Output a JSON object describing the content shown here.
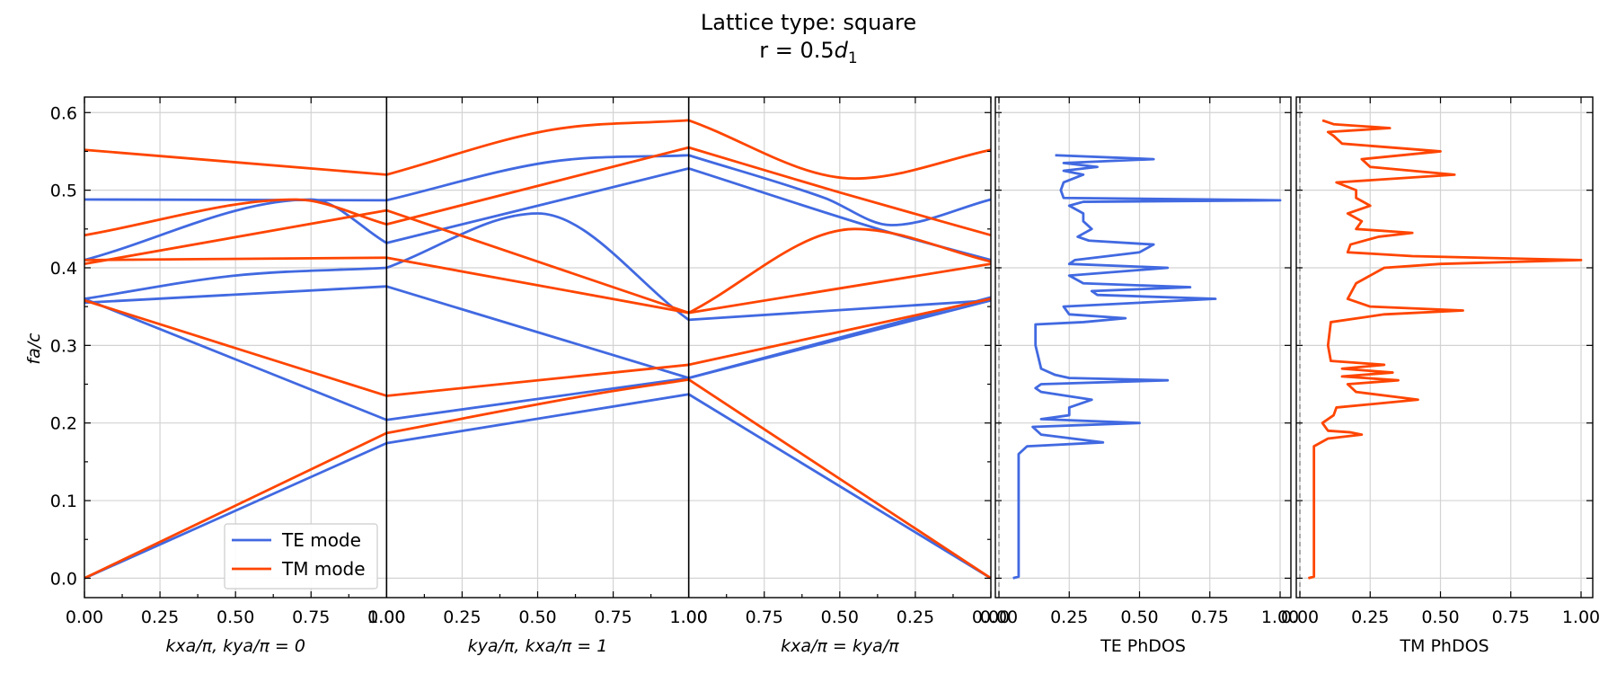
{
  "chart_data": {
    "type": "line",
    "title_line1": "Lattice type: square",
    "title_line2_prefix": "r = 0.5",
    "title_line2_symbol": "d",
    "title_line2_sub": "1",
    "ylabel": "fa/c",
    "ylim": [
      -0.025,
      0.62
    ],
    "yticks": [
      "0.0",
      "0.1",
      "0.2",
      "0.3",
      "0.4",
      "0.5",
      "0.6"
    ],
    "ytick_values": [
      0,
      0.1,
      0.2,
      0.3,
      0.4,
      0.5,
      0.6
    ],
    "grid": true,
    "legend": {
      "position": "lower-left",
      "entries": [
        "TE mode",
        "TM mode"
      ]
    },
    "colors": {
      "TE": "#4169E1",
      "TM": "#FF4500"
    },
    "segments": [
      {
        "xlabel": "kxa/π, kya/π = 0",
        "xticks": [
          "0.00",
          "0.25",
          "0.50",
          "0.75",
          "1.00"
        ]
      },
      {
        "xlabel": "kya/π, kxa/π = 1",
        "xticks": [
          "0.00",
          "0.25",
          "0.50",
          "0.75",
          "1.00"
        ]
      },
      {
        "xlabel": "kxa/π = kya/π",
        "xticks": [
          "1.00",
          "0.75",
          "0.50",
          "0.25",
          "0.00"
        ]
      }
    ],
    "band_x": [
      0,
      1,
      2,
      3
    ],
    "te_bands": [
      {
        "x": [
          0,
          1,
          1.55,
          2,
          2.45,
          2.67,
          3
        ],
        "y": [
          0.488,
          0.487,
          0.537,
          0.545,
          0.49,
          0.455,
          0.488
        ]
      },
      {
        "x": [
          0,
          0.75,
          1,
          2,
          2.67,
          3
        ],
        "y": [
          0.41,
          0.488,
          0.432,
          0.528,
          0.445,
          0.41
        ]
      },
      {
        "x": [
          0,
          0.5,
          1,
          1.5,
          2,
          3
        ],
        "y": [
          0.36,
          0.39,
          0.4,
          0.47,
          0.333,
          0.358
        ]
      },
      {
        "x": [
          0,
          1,
          2,
          3
        ],
        "y": [
          0.355,
          0.376,
          0.258,
          0.358
        ]
      },
      {
        "x": [
          0,
          1,
          2,
          3
        ],
        "y": [
          0.36,
          0.204,
          0.258,
          0.362
        ]
      },
      {
        "x": [
          0,
          1,
          2,
          3
        ],
        "y": [
          0,
          0.174,
          0.237,
          0
        ]
      }
    ],
    "tm_bands": [
      {
        "x": [
          0,
          1,
          1.55,
          2,
          2.55,
          3
        ],
        "y": [
          0.552,
          0.52,
          0.578,
          0.59,
          0.515,
          0.552
        ]
      },
      {
        "x": [
          0,
          0.7,
          1,
          2,
          2.5,
          3
        ],
        "y": [
          0.442,
          0.488,
          0.456,
          0.555,
          0.497,
          0.442
        ]
      },
      {
        "x": [
          0,
          1,
          2,
          2.55,
          3
        ],
        "y": [
          0.405,
          0.474,
          0.342,
          0.45,
          0.408
        ]
      },
      {
        "x": [
          0,
          1,
          2,
          3
        ],
        "y": [
          0.41,
          0.413,
          0.342,
          0.405
        ]
      },
      {
        "x": [
          0,
          1,
          2,
          3
        ],
        "y": [
          0.358,
          0.235,
          0.275,
          0.36
        ]
      },
      {
        "x": [
          0,
          1,
          1.7,
          2,
          3
        ],
        "y": [
          0,
          0.187,
          0.238,
          0.256,
          0
        ]
      }
    ],
    "te_dos": {
      "xlabel": "TE PhDOS",
      "xticks": [
        "0.00",
        "0.25",
        "0.50",
        "0.75",
        "1.00"
      ],
      "y": [
        0.0,
        0.002,
        0.16,
        0.17,
        0.175,
        0.185,
        0.195,
        0.2,
        0.205,
        0.21,
        0.22,
        0.23,
        0.24,
        0.245,
        0.25,
        0.255,
        0.258,
        0.262,
        0.27,
        0.3,
        0.327,
        0.33,
        0.335,
        0.34,
        0.35,
        0.36,
        0.365,
        0.37,
        0.375,
        0.38,
        0.39,
        0.4,
        0.405,
        0.41,
        0.42,
        0.43,
        0.435,
        0.44,
        0.45,
        0.46,
        0.47,
        0.48,
        0.485,
        0.487,
        0.49,
        0.5,
        0.51,
        0.52,
        0.525,
        0.53,
        0.535,
        0.54,
        0.545
      ],
      "v": [
        0.05,
        0.07,
        0.07,
        0.1,
        0.37,
        0.15,
        0.12,
        0.5,
        0.15,
        0.25,
        0.25,
        0.33,
        0.15,
        0.13,
        0.15,
        0.6,
        0.25,
        0.2,
        0.15,
        0.13,
        0.13,
        0.3,
        0.45,
        0.25,
        0.23,
        0.77,
        0.35,
        0.33,
        0.68,
        0.3,
        0.25,
        0.6,
        0.25,
        0.27,
        0.5,
        0.55,
        0.32,
        0.28,
        0.33,
        0.3,
        0.3,
        0.25,
        0.3,
        1.0,
        0.23,
        0.22,
        0.23,
        0.3,
        0.23,
        0.35,
        0.23,
        0.55,
        0.2
      ]
    },
    "tm_dos": {
      "xlabel": "TM PhDOS",
      "xticks": [
        "0.00",
        "0.25",
        "0.50",
        "0.75",
        "1.00"
      ],
      "y": [
        0.0,
        0.002,
        0.17,
        0.18,
        0.185,
        0.188,
        0.19,
        0.2,
        0.21,
        0.22,
        0.23,
        0.24,
        0.25,
        0.255,
        0.26,
        0.265,
        0.27,
        0.275,
        0.28,
        0.3,
        0.33,
        0.34,
        0.345,
        0.35,
        0.36,
        0.38,
        0.4,
        0.405,
        0.41,
        0.415,
        0.42,
        0.43,
        0.44,
        0.445,
        0.45,
        0.46,
        0.47,
        0.48,
        0.49,
        0.5,
        0.51,
        0.52,
        0.53,
        0.54,
        0.55,
        0.56,
        0.57,
        0.575,
        0.58,
        0.585,
        0.59
      ],
      "v": [
        0.03,
        0.05,
        0.05,
        0.1,
        0.22,
        0.18,
        0.1,
        0.08,
        0.12,
        0.13,
        0.42,
        0.2,
        0.17,
        0.35,
        0.15,
        0.33,
        0.15,
        0.3,
        0.11,
        0.1,
        0.11,
        0.3,
        0.58,
        0.25,
        0.17,
        0.2,
        0.3,
        0.5,
        1.0,
        0.4,
        0.17,
        0.18,
        0.28,
        0.4,
        0.2,
        0.22,
        0.17,
        0.25,
        0.2,
        0.2,
        0.13,
        0.55,
        0.25,
        0.22,
        0.5,
        0.15,
        0.12,
        0.1,
        0.32,
        0.12,
        0.08
      ]
    }
  }
}
